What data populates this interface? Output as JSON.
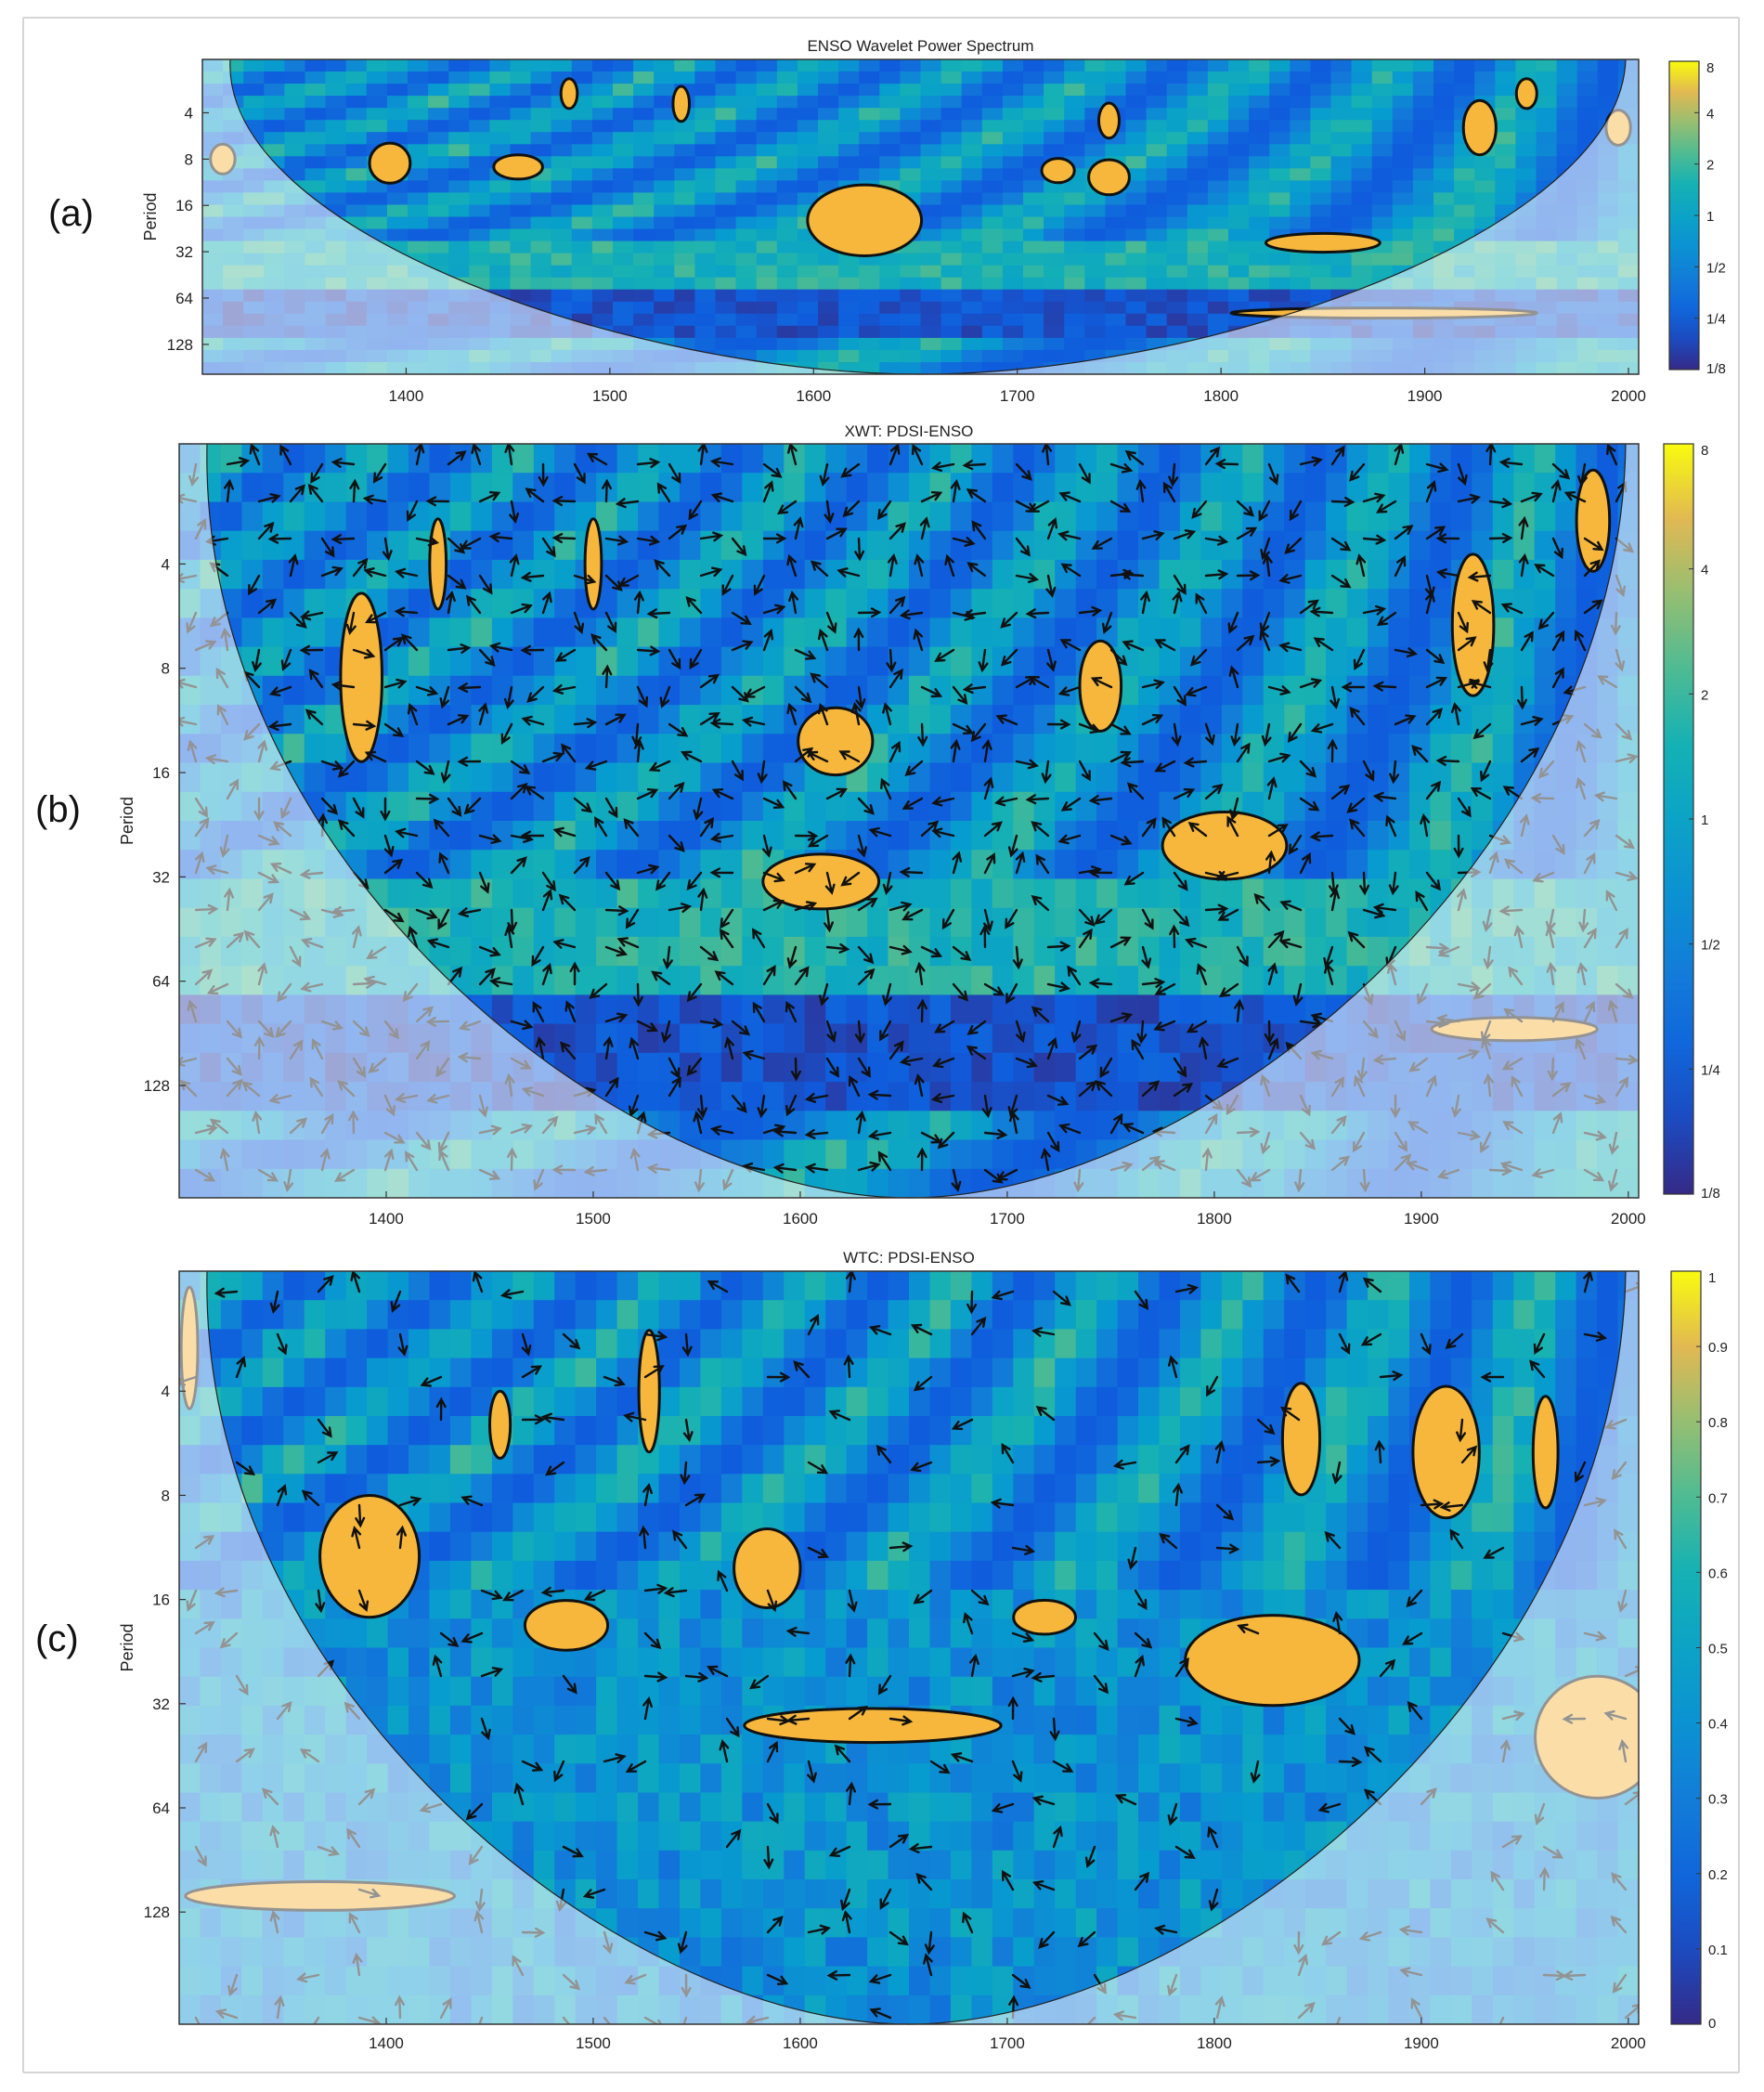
{
  "chart_data": [
    {
      "panel_label": "(a)",
      "type": "heatmap",
      "title": "ENSO Wavelet Power Spectrum",
      "xlabel": "",
      "ylabel": "Period",
      "xlim": [
        1300,
        2005
      ],
      "ylim_period": [
        1.8,
        200
      ],
      "y_scale": "log2",
      "x_ticks": [
        1400,
        1500,
        1600,
        1700,
        1800,
        1900,
        2000
      ],
      "y_ticks": [
        4,
        8,
        16,
        32,
        64,
        128
      ],
      "colorbar": {
        "range": [
          0.125,
          8
        ],
        "scale": "log2",
        "ticks": [
          {
            "v": 8,
            "label": "8"
          },
          {
            "v": 4,
            "label": "4"
          },
          {
            "v": 2,
            "label": "2"
          },
          {
            "v": 1,
            "label": "1"
          },
          {
            "v": 0.5,
            "label": "1/2"
          },
          {
            "v": 0.25,
            "label": "1/4"
          },
          {
            "v": 0.125,
            "label": "1/8"
          }
        ]
      },
      "significant_regions": [
        {
          "x": 1310,
          "period": 8,
          "dx": 6,
          "rp": 1.25
        },
        {
          "x": 1392,
          "period": 8.5,
          "dx": 10,
          "rp": 1.35
        },
        {
          "x": 1455,
          "period": 9,
          "dx": 12,
          "rp": 1.2
        },
        {
          "x": 1625,
          "period": 20,
          "dx": 28,
          "rp": 1.7
        },
        {
          "x": 1720,
          "period": 9.5,
          "dx": 8,
          "rp": 1.2
        },
        {
          "x": 1745,
          "period": 10.5,
          "dx": 10,
          "rp": 1.3
        },
        {
          "x": 1850,
          "period": 28,
          "dx": 28,
          "rp": 1.15
        },
        {
          "x": 1880,
          "period": 80,
          "dx": 75,
          "rp": 1.08
        },
        {
          "x": 1745,
          "period": 4.5,
          "dx": 5,
          "rp": 1.3
        },
        {
          "x": 1927,
          "period": 5,
          "dx": 8,
          "rp": 1.5
        },
        {
          "x": 1995,
          "period": 5,
          "dx": 6,
          "rp": 1.3
        },
        {
          "x": 1480,
          "period": 3,
          "dx": 4,
          "rp": 1.25
        },
        {
          "x": 1535,
          "period": 3.5,
          "dx": 4,
          "rp": 1.3
        },
        {
          "x": 1950,
          "period": 3,
          "dx": 5,
          "rp": 1.25
        }
      ]
    },
    {
      "panel_label": "(b)",
      "type": "heatmap",
      "title": "XWT: PDSI-ENSO",
      "xlabel": "",
      "ylabel": "Period",
      "xlim": [
        1300,
        2005
      ],
      "ylim_period": [
        1.8,
        270
      ],
      "y_scale": "log2",
      "x_ticks": [
        1400,
        1500,
        1600,
        1700,
        1800,
        1900,
        2000
      ],
      "y_ticks": [
        4,
        8,
        16,
        32,
        64,
        128
      ],
      "colorbar": {
        "range": [
          0.125,
          8
        ],
        "scale": "log2",
        "ticks": [
          {
            "v": 8,
            "label": "8"
          },
          {
            "v": 4,
            "label": "4"
          },
          {
            "v": 2,
            "label": "2"
          },
          {
            "v": 1,
            "label": "1"
          },
          {
            "v": 0.5,
            "label": "1/2"
          },
          {
            "v": 0.25,
            "label": "1/4"
          },
          {
            "v": 0.125,
            "label": "1/8"
          }
        ]
      },
      "significant_regions": [
        {
          "x": 1388,
          "period": 8.5,
          "dx": 10,
          "rp": 1.75
        },
        {
          "x": 1617,
          "period": 13,
          "dx": 18,
          "rp": 1.25
        },
        {
          "x": 1610,
          "period": 33,
          "dx": 28,
          "rp": 1.2
        },
        {
          "x": 1805,
          "period": 26,
          "dx": 30,
          "rp": 1.25
        },
        {
          "x": 1745,
          "period": 9,
          "dx": 10,
          "rp": 1.35
        },
        {
          "x": 1925,
          "period": 6,
          "dx": 10,
          "rp": 1.6
        },
        {
          "x": 1945,
          "period": 88,
          "dx": 40,
          "rp": 1.08
        },
        {
          "x": 1500,
          "period": 4,
          "dx": 4,
          "rp": 1.35
        },
        {
          "x": 1425,
          "period": 4,
          "dx": 4,
          "rp": 1.35
        },
        {
          "x": 1983,
          "period": 3,
          "dx": 8,
          "rp": 1.4
        }
      ]
    },
    {
      "panel_label": "(c)",
      "type": "heatmap",
      "title": "WTC: PDSI-ENSO",
      "xlabel": "",
      "ylabel": "Period",
      "xlim": [
        1300,
        2005
      ],
      "ylim_period": [
        1.8,
        270
      ],
      "y_scale": "log2",
      "x_ticks": [
        1400,
        1500,
        1600,
        1700,
        1800,
        1900,
        2000
      ],
      "y_ticks": [
        4,
        8,
        16,
        32,
        64,
        128
      ],
      "colorbar": {
        "range": [
          0,
          1
        ],
        "scale": "linear",
        "ticks": [
          {
            "v": 1,
            "label": "1"
          },
          {
            "v": 0.9,
            "label": "0.9"
          },
          {
            "v": 0.8,
            "label": "0.8"
          },
          {
            "v": 0.7,
            "label": "0.7"
          },
          {
            "v": 0.6,
            "label": "0.6"
          },
          {
            "v": 0.5,
            "label": "0.5"
          },
          {
            "v": 0.4,
            "label": "0.4"
          },
          {
            "v": 0.3,
            "label": "0.3"
          },
          {
            "v": 0.2,
            "label": "0.2"
          },
          {
            "v": 0.1,
            "label": "0.1"
          },
          {
            "v": 0,
            "label": "0"
          }
        ]
      },
      "significant_regions": [
        {
          "x": 1392,
          "period": 12,
          "dx": 24,
          "rp": 1.5
        },
        {
          "x": 1487,
          "period": 19,
          "dx": 20,
          "rp": 1.18
        },
        {
          "x": 1584,
          "period": 13,
          "dx": 16,
          "rp": 1.3
        },
        {
          "x": 1635,
          "period": 37,
          "dx": 62,
          "rp": 1.12
        },
        {
          "x": 1718,
          "period": 18,
          "dx": 15,
          "rp": 1.12
        },
        {
          "x": 1828,
          "period": 24,
          "dx": 42,
          "rp": 1.35
        },
        {
          "x": 1842,
          "period": 5.5,
          "dx": 9,
          "rp": 1.45
        },
        {
          "x": 1912,
          "period": 6,
          "dx": 16,
          "rp": 1.55
        },
        {
          "x": 1368,
          "period": 115,
          "dx": 65,
          "rp": 1.1
        },
        {
          "x": 1985,
          "period": 40,
          "dx": 30,
          "rp": 1.5
        },
        {
          "x": 1527,
          "period": 4,
          "dx": 5,
          "rp": 1.5
        },
        {
          "x": 1455,
          "period": 5,
          "dx": 5,
          "rp": 1.25
        },
        {
          "x": 1960,
          "period": 6,
          "dx": 6,
          "rp": 1.45
        },
        {
          "x": 1305,
          "period": 3,
          "dx": 4,
          "rp": 1.5
        }
      ]
    }
  ]
}
